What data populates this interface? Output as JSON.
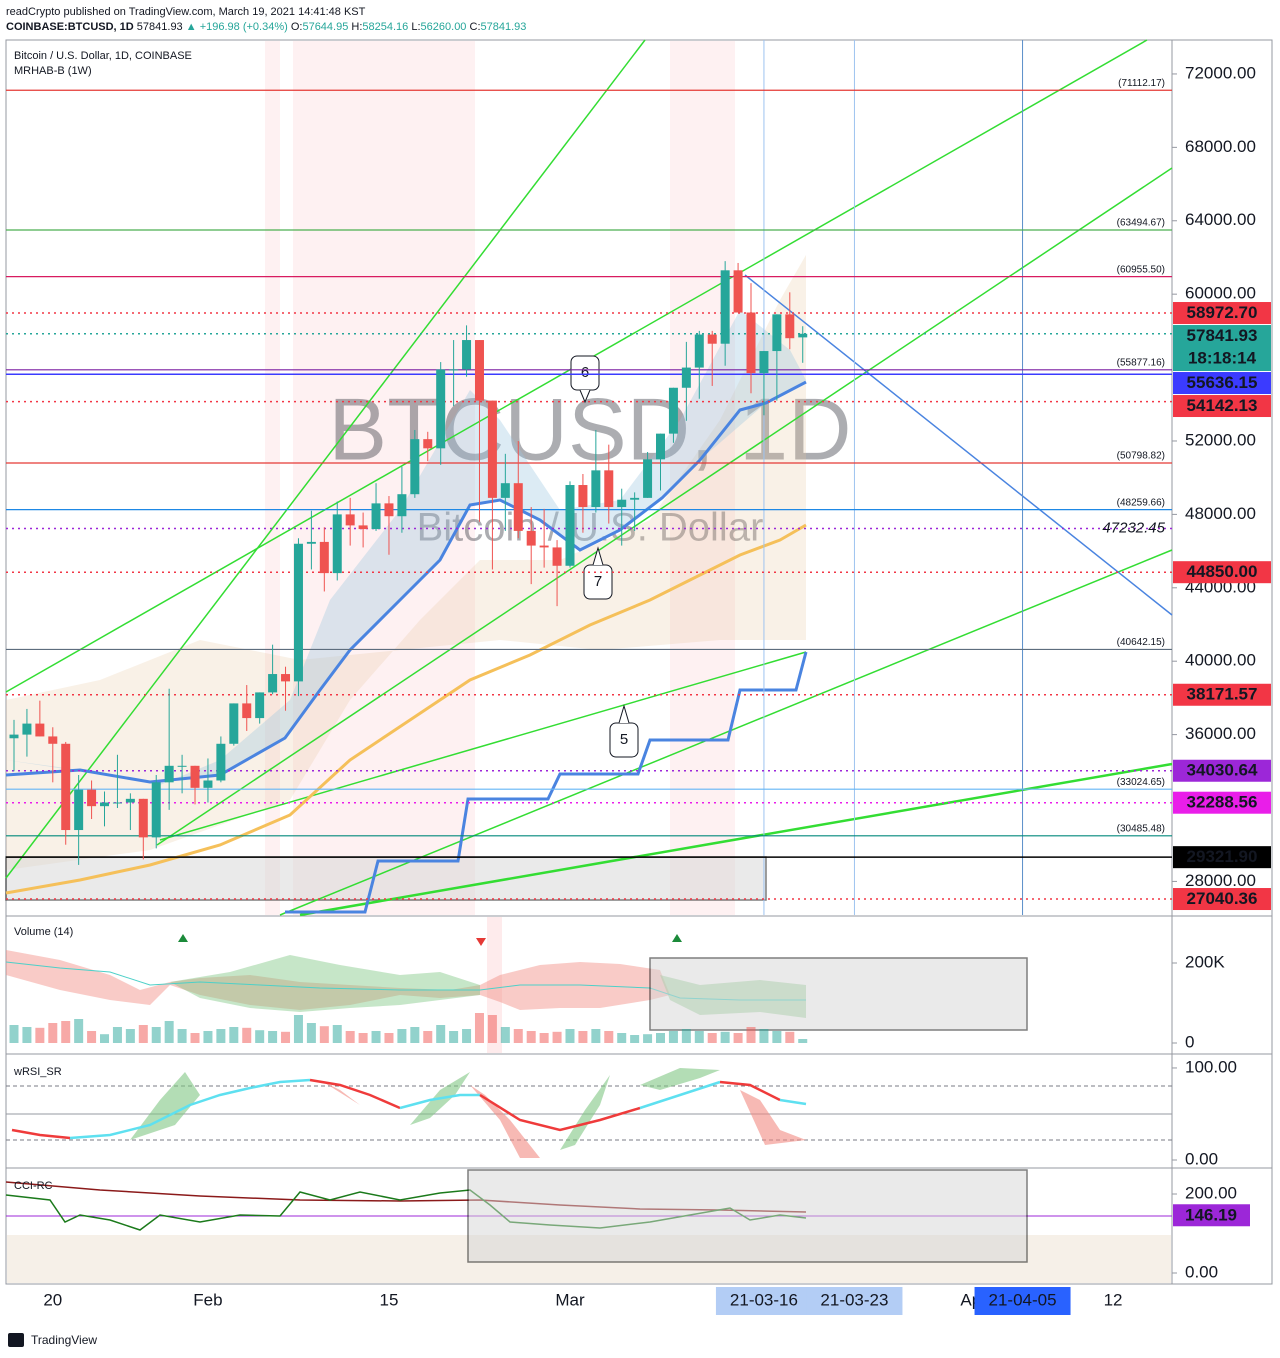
{
  "header": {
    "line1": "readCrypto published on TradingView.com, March 19, 2021 14:41:48 KST",
    "symbol": "COINBASE:BTCUSD, 1D",
    "last": "57841.93",
    "change": "▲ +196.98 (+0.34%)",
    "ohlc": [
      "O:",
      "57644.95",
      "H:",
      "58254.16",
      "L:",
      "56260.00",
      "C:",
      "57841.93"
    ]
  },
  "footer": "TradingView",
  "chart_data": {
    "type": "candlestick",
    "title": "Bitcoin / U.S. Dollar, 1D, COINBASE",
    "subtitle": "MRHAB-B (1W)",
    "watermark": [
      "BTCUSD, 1D",
      "Bitcoin / U.S. Dollar"
    ],
    "up_color": "#26a69a",
    "down_color": "#ef5350",
    "categories": [
      null,
      null,
      null,
      "20",
      null,
      null,
      null,
      null,
      null,
      null,
      null,
      null,
      null,
      null,
      null,
      "Feb",
      null,
      null,
      null,
      null,
      null,
      null,
      null,
      null,
      null,
      null,
      null,
      null,
      null,
      "15",
      null,
      null,
      null,
      null,
      null,
      null,
      null,
      null,
      null,
      null,
      null,
      null,
      null,
      "Mar",
      null,
      null,
      null,
      null,
      null,
      null,
      null,
      null,
      null,
      null,
      null,
      null,
      null,
      null,
      null,
      null,
      null,
      null,
      null,
      null,
      null,
      null,
      null,
      null,
      null,
      null,
      null,
      null,
      null,
      null,
      "Ap",
      null,
      null,
      null,
      null,
      null,
      null,
      null,
      null,
      null,
      null,
      "12",
      null,
      null,
      null,
      null
    ],
    "open": [
      35800,
      36000,
      36600,
      35900,
      35500,
      30800,
      33000,
      32100,
      32300,
      32300,
      32500,
      30400,
      33400,
      34300,
      34300,
      33100,
      33500,
      35500,
      37700,
      36900,
      38300,
      39300,
      38900,
      46400,
      46500,
      44800,
      48000,
      47400,
      47200,
      48600,
      47900,
      49100,
      52100,
      51600,
      55900,
      55900,
      57500,
      54200,
      48900,
      49700,
      47100,
      46300,
      46200,
      45200,
      49600,
      48400,
      50400,
      48400,
      48800,
      48900,
      51000,
      52400,
      54900,
      56000,
      57800,
      57300,
      61300,
      59000,
      55700,
      56900,
      58900,
      57645,
      null,
      null,
      null,
      null,
      null,
      null,
      null,
      null,
      null,
      null,
      null,
      null,
      null,
      null,
      null,
      null,
      null,
      null,
      null,
      null,
      null,
      null,
      null,
      null,
      null,
      null,
      null,
      null
    ],
    "high": [
      36800,
      37400,
      37850,
      36400,
      35600,
      33800,
      33500,
      32900,
      34900,
      32800,
      32500,
      33800,
      38500,
      34900,
      34300,
      34700,
      35900,
      37700,
      38700,
      38300,
      40900,
      39700,
      46700,
      48200,
      47300,
      48700,
      48900,
      48100,
      49700,
      49000,
      50600,
      52600,
      52500,
      56300,
      57500,
      58300,
      57500,
      54200,
      51300,
      52000,
      48400,
      48300,
      46600,
      49800,
      50200,
      52600,
      51800,
      49400,
      49200,
      51400,
      52400,
      54900,
      57400,
      58000,
      58000,
      61800,
      61700,
      60600,
      56900,
      58900,
      60100,
      58254,
      null,
      null,
      null,
      null,
      null,
      null,
      null,
      null,
      null,
      null,
      null,
      null,
      null,
      null,
      null,
      null,
      null,
      null,
      null,
      null,
      null,
      null,
      null,
      null,
      null,
      null,
      null,
      null
    ],
    "low": [
      34000,
      34800,
      35900,
      33400,
      30000,
      28900,
      31400,
      31000,
      32000,
      30800,
      29200,
      29800,
      31900,
      32800,
      32200,
      32300,
      33400,
      35400,
      36200,
      36600,
      38200,
      37300,
      38100,
      45000,
      43800,
      44400,
      46300,
      46200,
      47100,
      45800,
      47000,
      48900,
      50900,
      50700,
      53900,
      55500,
      47600,
      45000,
      47100,
      46700,
      44200,
      45100,
      43000,
      45100,
      47000,
      48100,
      47500,
      46300,
      47100,
      48900,
      49300,
      51900,
      53100,
      54300,
      55000,
      56100,
      59000,
      54600,
      53400,
      54200,
      57000,
      56260,
      null,
      null,
      null,
      null,
      null,
      null,
      null,
      null,
      null,
      null,
      null,
      null,
      null,
      null,
      null,
      null,
      null,
      null,
      null,
      null,
      null,
      null,
      null,
      null,
      null,
      null,
      null,
      null
    ],
    "close": [
      36000,
      36600,
      35900,
      35500,
      30800,
      33000,
      32100,
      32300,
      32300,
      32500,
      30400,
      33400,
      34300,
      34300,
      33100,
      33500,
      35500,
      37700,
      36900,
      38300,
      39300,
      38900,
      46400,
      46500,
      44800,
      48000,
      47400,
      47200,
      48600,
      47900,
      49100,
      52100,
      51600,
      55900,
      55900,
      57500,
      54200,
      48900,
      49700,
      47100,
      46300,
      46200,
      45200,
      49600,
      48400,
      50400,
      48400,
      48800,
      48900,
      51000,
      52400,
      54900,
      56000,
      57800,
      57300,
      61300,
      59000,
      55700,
      56900,
      58900,
      57600,
      57842,
      null,
      null,
      null,
      null,
      null,
      null,
      null,
      null,
      null,
      null,
      null,
      null,
      null,
      null,
      null,
      null,
      null,
      null,
      null,
      null,
      null,
      null,
      null,
      null,
      null,
      null,
      null,
      null
    ],
    "ylim": [
      26170,
      73850
    ],
    "yticks": [
      {
        "value": 72000,
        "label": "72000.00"
      },
      {
        "value": 68000,
        "label": "68000.00"
      },
      {
        "value": 64000,
        "label": "64000.00"
      },
      {
        "value": 60000,
        "label": "60000.00"
      },
      {
        "value": 52000,
        "label": "52000.00"
      },
      {
        "value": 48000,
        "label": "48000.00"
      },
      {
        "value": 44000,
        "label": "44000.00"
      },
      {
        "value": 40000,
        "label": "40000.00"
      },
      {
        "value": 36000,
        "label": "36000.00"
      },
      {
        "value": 28000,
        "label": "28000.00"
      }
    ],
    "levels": [
      {
        "value": 58972.7,
        "label": "58972.70",
        "color": "#f23645",
        "line": "dotted",
        "box": true
      },
      {
        "value": 57841.93,
        "label": "57841.93",
        "countdown": "18:18:14",
        "color": "#26a69a",
        "line": "dotted",
        "box": true
      },
      {
        "value": 55636.15,
        "label": "55636.15",
        "color": "#3b3bff",
        "line": "solid",
        "box": true
      },
      {
        "value": 54142.13,
        "label": "54142.13",
        "color": "#f23645",
        "line": "dotted",
        "box": true
      },
      {
        "value": 47232.45,
        "label": "47232.45",
        "color": "#9c27d8",
        "line": "dotted",
        "box": false
      },
      {
        "value": 44850,
        "label": "44850.00",
        "color": "#f23645",
        "line": "dotted",
        "box": true
      },
      {
        "value": 38171.57,
        "label": "38171.57",
        "color": "#f23645",
        "line": "dotted",
        "box": true
      },
      {
        "value": 34030.64,
        "label": "34030.64",
        "color": "#9c27d8",
        "line": "dotted",
        "box": true
      },
      {
        "value": 32288.56,
        "label": "32288.56",
        "color": "#e91ee9",
        "line": "dotted",
        "box": true
      },
      {
        "value": 29321.9,
        "label": "29321.90",
        "color": "#000000",
        "line": "solid",
        "box": true
      },
      {
        "value": 27040.36,
        "label": "27040.36",
        "color": "#f23645",
        "line": "dotted",
        "box": true
      }
    ],
    "bracket_levels": [
      {
        "value": 71112.17,
        "label": "(71112.17)",
        "color": "#e53935"
      },
      {
        "value": 63494.67,
        "label": "(63494.67)",
        "color": "#4caf50"
      },
      {
        "value": 60955.5,
        "label": "(60955.50)",
        "color": "#d81b60"
      },
      {
        "value": 55877.16,
        "label": "(55877.16)",
        "color": "#7b1fa2"
      },
      {
        "value": 50798.82,
        "label": "(50798.82)",
        "color": "#e53935"
      },
      {
        "value": 48259.66,
        "label": "(48259.66)",
        "color": "#1e88e5"
      },
      {
        "value": 40642.15,
        "label": "(40642.15)",
        "color": "#5d6d7e"
      },
      {
        "value": 33024.65,
        "label": "(33024.65)",
        "color": "#64b5f6"
      },
      {
        "value": 30485.48,
        "label": "(30485.48)",
        "color": "#00897b"
      }
    ],
    "date_markers": [
      {
        "x": 58,
        "label": "21-03-16",
        "color": "#b3cdf5",
        "text_color": "#131722"
      },
      {
        "x": 65,
        "label": "21-03-23",
        "color": "#b3cdf5",
        "text_color": "#131722"
      },
      {
        "x": 78,
        "label": "21-04-05",
        "color": "#2962ff",
        "text_color": "#ffffff"
      }
    ],
    "annotations": [
      "6",
      "7",
      "5"
    ],
    "volume": {
      "title": "Volume (14)",
      "values": [
        45000,
        40000,
        38000,
        50000,
        55000,
        60000,
        30000,
        22000,
        40000,
        35000,
        45000,
        40000,
        55000,
        35000,
        25000,
        30000,
        35000,
        40000,
        38000,
        32000,
        30000,
        28000,
        70000,
        50000,
        42000,
        45000,
        30000,
        25000,
        30000,
        25000,
        35000,
        40000,
        30000,
        45000,
        30000,
        35000,
        75000,
        70000,
        40000,
        35000,
        30000,
        25000,
        28000,
        35000,
        30000,
        35000,
        30000,
        25000,
        20000,
        22000,
        25000,
        30000,
        35000,
        30000,
        25000,
        28000,
        25000,
        40000,
        35000,
        30000,
        28000,
        10000,
        null,
        null,
        null,
        null,
        null,
        null,
        null,
        null,
        null,
        null,
        null,
        null,
        null,
        null,
        null,
        null,
        null,
        null,
        null,
        null,
        null,
        null,
        null,
        null,
        null,
        null,
        null,
        null
      ],
      "ylim": [
        -25000,
        312500
      ],
      "yticks": [
        {
          "value": 200000,
          "label": "200K"
        },
        0
      ]
    },
    "rsi": {
      "title": "wRSI_SR",
      "ylim": [
        -8.7,
        113
      ],
      "yticks": [
        {
          "value": 100,
          "label": "100.00"
        },
        {
          "value": 0,
          "label": "0.00"
        }
      ]
    },
    "cci": {
      "title": "CCI-RC",
      "ylim": [
        -25.3,
        260.8
      ],
      "yticks": [
        {
          "value": 200,
          "label": "200.00"
        },
        {
          "value": 0,
          "label": "0.00"
        }
      ],
      "last": {
        "value": 146.19,
        "label": "146.19",
        "color": "#9c27d8"
      }
    }
  }
}
